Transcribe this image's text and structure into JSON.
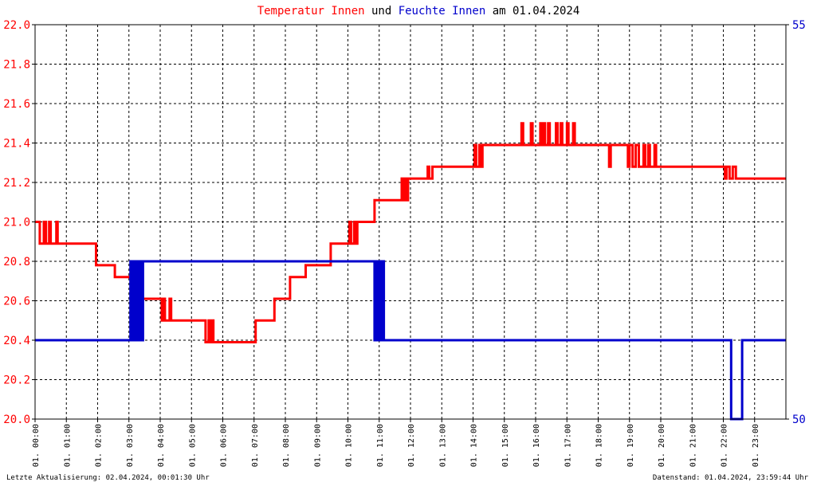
{
  "title": {
    "part1": "Temperatur Innen",
    "part2": " und ",
    "part3": "Feuchte Innen",
    "part4": " am 01.04.2024"
  },
  "footer": {
    "left": "Letzte Aktualisierung: 02.04.2024, 00:01:30 Uhr",
    "right": "Datenstand: 01.04.2024, 23:59:44 Uhr"
  },
  "colors": {
    "temperature": "#ff0000",
    "humidity": "#0000cc",
    "title_text": "#000000",
    "grid": "#000000"
  },
  "chart_data": {
    "type": "line",
    "x_unit": "hours",
    "x_range": [
      0,
      24
    ],
    "x_ticks": [
      "01. 00:00",
      "01. 01:00",
      "01. 02:00",
      "01. 03:00",
      "01. 04:00",
      "01. 05:00",
      "01. 06:00",
      "01. 07:00",
      "01. 08:00",
      "01. 09:00",
      "01. 10:00",
      "01. 11:00",
      "01. 12:00",
      "01. 13:00",
      "01. 14:00",
      "01. 15:00",
      "01. 16:00",
      "01. 17:00",
      "01. 18:00",
      "01. 19:00",
      "01. 20:00",
      "01. 21:00",
      "01. 22:00",
      "01. 23:00"
    ],
    "y_left": {
      "range": [
        20.0,
        22.0
      ],
      "ticks": [
        "20.0",
        "20.2",
        "20.4",
        "20.6",
        "20.8",
        "21.0",
        "21.2",
        "21.4",
        "21.6",
        "21.8",
        "22.0"
      ]
    },
    "y_right": {
      "range": [
        50,
        55
      ],
      "ticks": [
        "50",
        "55"
      ]
    },
    "grid": true,
    "series": [
      {
        "name": "Temperatur Innen",
        "axis": "left",
        "color": "#ff0000",
        "points": [
          [
            0.0,
            21.0
          ],
          [
            0.12,
            21.0
          ],
          [
            0.15,
            20.89
          ],
          [
            0.25,
            20.89
          ],
          [
            0.28,
            21.0
          ],
          [
            0.35,
            20.89
          ],
          [
            0.45,
            21.0
          ],
          [
            0.5,
            20.89
          ],
          [
            0.65,
            20.89
          ],
          [
            0.68,
            21.0
          ],
          [
            0.72,
            20.89
          ],
          [
            1.9,
            20.89
          ],
          [
            1.95,
            20.78
          ],
          [
            2.5,
            20.78
          ],
          [
            2.55,
            20.72
          ],
          [
            3.1,
            20.72
          ],
          [
            3.15,
            20.61
          ],
          [
            4.0,
            20.61
          ],
          [
            4.05,
            20.5
          ],
          [
            4.1,
            20.61
          ],
          [
            4.15,
            20.5
          ],
          [
            4.3,
            20.61
          ],
          [
            4.35,
            20.5
          ],
          [
            5.4,
            20.5
          ],
          [
            5.45,
            20.39
          ],
          [
            5.55,
            20.5
          ],
          [
            5.6,
            20.39
          ],
          [
            5.65,
            20.5
          ],
          [
            5.7,
            20.39
          ],
          [
            7.0,
            20.39
          ],
          [
            7.05,
            20.5
          ],
          [
            7.6,
            20.5
          ],
          [
            7.65,
            20.61
          ],
          [
            8.1,
            20.61
          ],
          [
            8.15,
            20.72
          ],
          [
            8.6,
            20.72
          ],
          [
            8.65,
            20.78
          ],
          [
            9.4,
            20.78
          ],
          [
            9.45,
            20.89
          ],
          [
            10.0,
            20.89
          ],
          [
            10.05,
            21.0
          ],
          [
            10.1,
            20.89
          ],
          [
            10.2,
            21.0
          ],
          [
            10.25,
            20.89
          ],
          [
            10.3,
            21.0
          ],
          [
            10.8,
            21.0
          ],
          [
            10.85,
            21.11
          ],
          [
            11.7,
            21.11
          ],
          [
            11.72,
            21.22
          ],
          [
            11.78,
            21.11
          ],
          [
            11.82,
            21.22
          ],
          [
            11.88,
            21.11
          ],
          [
            11.92,
            21.22
          ],
          [
            12.5,
            21.22
          ],
          [
            12.55,
            21.28
          ],
          [
            12.6,
            21.22
          ],
          [
            12.7,
            21.28
          ],
          [
            14.0,
            21.28
          ],
          [
            14.05,
            21.39
          ],
          [
            14.1,
            21.28
          ],
          [
            14.2,
            21.39
          ],
          [
            14.25,
            21.28
          ],
          [
            14.3,
            21.39
          ],
          [
            15.5,
            21.39
          ],
          [
            15.55,
            21.5
          ],
          [
            15.6,
            21.39
          ],
          [
            15.8,
            21.39
          ],
          [
            15.85,
            21.5
          ],
          [
            15.9,
            21.39
          ],
          [
            16.1,
            21.39
          ],
          [
            16.15,
            21.5
          ],
          [
            16.2,
            21.39
          ],
          [
            16.25,
            21.5
          ],
          [
            16.3,
            21.39
          ],
          [
            16.4,
            21.5
          ],
          [
            16.45,
            21.39
          ],
          [
            16.6,
            21.39
          ],
          [
            16.65,
            21.5
          ],
          [
            16.7,
            21.39
          ],
          [
            16.8,
            21.5
          ],
          [
            16.85,
            21.39
          ],
          [
            17.0,
            21.5
          ],
          [
            17.05,
            21.39
          ],
          [
            17.2,
            21.5
          ],
          [
            17.25,
            21.39
          ],
          [
            18.3,
            21.39
          ],
          [
            18.35,
            21.28
          ],
          [
            18.4,
            21.39
          ],
          [
            18.9,
            21.39
          ],
          [
            18.95,
            21.28
          ],
          [
            19.0,
            21.39
          ],
          [
            19.1,
            21.28
          ],
          [
            19.2,
            21.39
          ],
          [
            19.3,
            21.28
          ],
          [
            19.4,
            21.28
          ],
          [
            19.45,
            21.39
          ],
          [
            19.5,
            21.28
          ],
          [
            19.6,
            21.39
          ],
          [
            19.65,
            21.28
          ],
          [
            19.8,
            21.39
          ],
          [
            19.85,
            21.28
          ],
          [
            22.0,
            21.28
          ],
          [
            22.05,
            21.22
          ],
          [
            22.1,
            21.28
          ],
          [
            22.2,
            21.22
          ],
          [
            22.3,
            21.28
          ],
          [
            22.4,
            21.22
          ],
          [
            24.0,
            21.22
          ]
        ]
      },
      {
        "name": "Feuchte Innen",
        "axis": "right",
        "color": "#0000cc",
        "points": [
          [
            0.0,
            51.0
          ],
          [
            3.0,
            51.0
          ],
          [
            3.05,
            52.0
          ],
          [
            3.1,
            51.0
          ],
          [
            3.15,
            52.0
          ],
          [
            3.2,
            51.0
          ],
          [
            3.25,
            52.0
          ],
          [
            3.3,
            51.0
          ],
          [
            3.35,
            52.0
          ],
          [
            3.4,
            51.0
          ],
          [
            3.45,
            52.0
          ],
          [
            10.8,
            52.0
          ],
          [
            10.85,
            51.0
          ],
          [
            10.9,
            52.0
          ],
          [
            10.95,
            51.0
          ],
          [
            11.0,
            52.0
          ],
          [
            11.05,
            51.0
          ],
          [
            11.1,
            52.0
          ],
          [
            11.15,
            51.0
          ],
          [
            22.2,
            51.0
          ],
          [
            22.25,
            50.0
          ],
          [
            22.55,
            50.0
          ],
          [
            22.6,
            51.0
          ],
          [
            24.0,
            51.0
          ]
        ]
      }
    ]
  }
}
